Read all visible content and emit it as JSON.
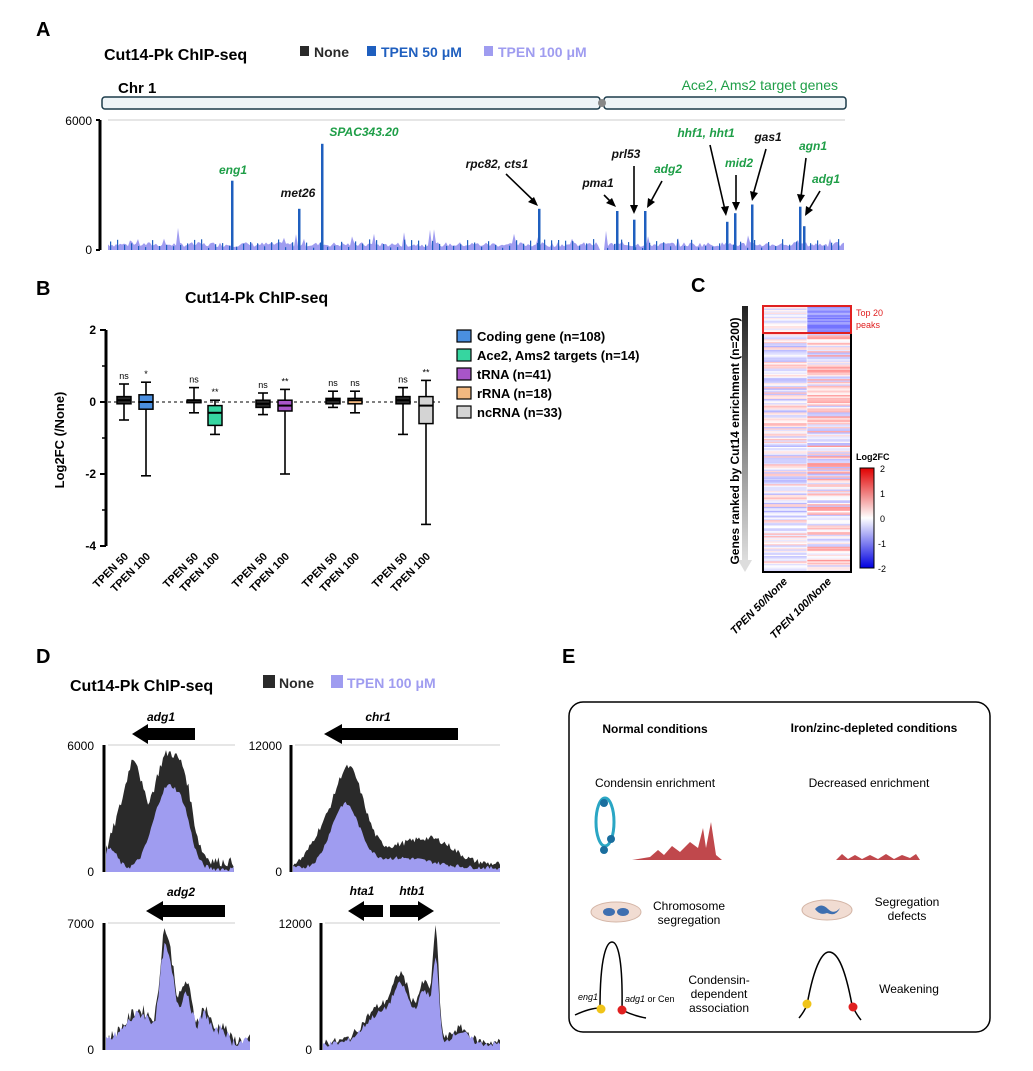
{
  "colors": {
    "none": "#2a2a2a",
    "tpen50": "#1f5fbf",
    "tpen100": "#9f9cf0",
    "green_label": "#1e9e47",
    "red": "#e02020",
    "condensin_red": "#c0484c",
    "coding": "#4a8fe0",
    "ace2": "#36d6a0",
    "trna": "#a855c9",
    "rrna": "#f2b880",
    "ncrna": "#d4d4d4"
  },
  "panel_letters": {
    "a": "A",
    "b": "B",
    "c": "C",
    "d": "D",
    "e": "E"
  },
  "panel_a": {
    "title": "Cut14-Pk ChIP-seq",
    "legend": [
      {
        "key": "none",
        "label": "None"
      },
      {
        "key": "tpen50",
        "label": "TPEN 50 μM"
      },
      {
        "key": "tpen100",
        "label": "TPEN 100 μM"
      }
    ],
    "chromosome_label": "Chr 1",
    "target_note": "Ace2, Ams2 target genes",
    "y_max": "6000",
    "y_min": "0",
    "peaks": [
      {
        "label": "eng1",
        "green": true,
        "value": 3200
      },
      {
        "label": "met26",
        "green": false,
        "value": 1900
      },
      {
        "label": "SPAC343.20",
        "green": true,
        "value": 4900
      },
      {
        "label": "rpc82, cts1",
        "green": false,
        "value": 1900
      },
      {
        "label": "pma1",
        "green": false,
        "value": 1800
      },
      {
        "label": "prl53",
        "green": false,
        "value": 1400
      },
      {
        "label": "adg2",
        "green": true,
        "value": 1800
      },
      {
        "label": "hhf1, hht1",
        "green": true,
        "value": 1300
      },
      {
        "label": "mid2",
        "green": true,
        "value": 1700
      },
      {
        "label": "gas1",
        "green": false,
        "value": 2100
      },
      {
        "label": "agn1",
        "green": true,
        "value": 2000
      },
      {
        "label": "adg1",
        "green": true,
        "value": 1100
      }
    ]
  },
  "panel_b": {
    "chart_data": {
      "type": "box",
      "title": "Cut14-Pk ChIP-seq",
      "ylabel": "Log2FC (/None)",
      "ylim": [
        -4,
        2
      ],
      "yticks": [
        "2",
        "0",
        "-2",
        "-4"
      ],
      "groups": [
        {
          "name": "Coding gene (n=108)",
          "color_key": "coding",
          "boxes": [
            {
              "x_label": "TPEN 50",
              "min": -0.5,
              "q1": -0.05,
              "median": 0.05,
              "q3": 0.15,
              "max": 0.5,
              "sig": "ns"
            },
            {
              "x_label": "TPEN 100",
              "min": -2.05,
              "q1": -0.2,
              "median": 0.0,
              "q3": 0.2,
              "max": 0.55,
              "sig": "*"
            }
          ]
        },
        {
          "name": "Ace2, Ams2 targets (n=14)",
          "color_key": "ace2",
          "boxes": [
            {
              "x_label": "TPEN 50",
              "min": -0.3,
              "q1": 0.0,
              "median": 0.05,
              "q3": 0.05,
              "max": 0.4,
              "sig": "ns"
            },
            {
              "x_label": "TPEN 100",
              "min": -0.9,
              "q1": -0.65,
              "median": -0.3,
              "q3": -0.1,
              "max": 0.05,
              "sig": "**"
            }
          ]
        },
        {
          "name": "tRNA (n=41)",
          "color_key": "trna",
          "boxes": [
            {
              "x_label": "TPEN 50",
              "min": -0.35,
              "q1": -0.15,
              "median": -0.05,
              "q3": 0.05,
              "max": 0.25,
              "sig": "ns"
            },
            {
              "x_label": "TPEN 100",
              "min": -2.0,
              "q1": -0.25,
              "median": -0.1,
              "q3": 0.05,
              "max": 0.35,
              "sig": "**"
            }
          ]
        },
        {
          "name": "rRNA (n=18)",
          "color_key": "rrna",
          "boxes": [
            {
              "x_label": "TPEN 50",
              "min": -0.15,
              "q1": -0.05,
              "median": 0.05,
              "q3": 0.1,
              "max": 0.3,
              "sig": "ns"
            },
            {
              "x_label": "TPEN 100",
              "min": -0.3,
              "q1": -0.05,
              "median": 0.05,
              "q3": 0.1,
              "max": 0.3,
              "sig": "ns"
            }
          ]
        },
        {
          "name": "ncRNA (n=33)",
          "color_key": "ncrna",
          "boxes": [
            {
              "x_label": "TPEN 50",
              "min": -0.9,
              "q1": -0.05,
              "median": 0.05,
              "q3": 0.15,
              "max": 0.4,
              "sig": "ns"
            },
            {
              "x_label": "TPEN 100",
              "min": -3.4,
              "q1": -0.6,
              "median": -0.1,
              "q3": 0.15,
              "max": 0.6,
              "sig": "**"
            }
          ]
        }
      ]
    }
  },
  "panel_c": {
    "y_label": "Genes ranked by Cut14 enrichment (n=200)",
    "top_label_line1": "Top 20",
    "top_label_line2": "peaks",
    "colorbar_title": "Log2FC",
    "colorbar_ticks": [
      "2",
      "1",
      "0",
      "-1",
      "-2"
    ],
    "x_labels": [
      "TPEN 50/None",
      "TPEN 100/None"
    ]
  },
  "panel_d": {
    "title": "Cut14-Pk ChIP-seq",
    "legend": [
      {
        "key": "none",
        "label": "None"
      },
      {
        "key": "tpen100",
        "label": "TPEN 100 μM"
      }
    ],
    "tracks": [
      {
        "genes": [
          "adg1"
        ],
        "y_max": "6000",
        "y_min": "0"
      },
      {
        "genes": [
          "chr1"
        ],
        "y_max": "12000",
        "y_min": "0"
      },
      {
        "genes": [
          "adg2"
        ],
        "y_max": "7000",
        "y_min": "0"
      },
      {
        "genes": [
          "hta1",
          "htb1"
        ],
        "y_max": "12000",
        "y_min": "0"
      }
    ]
  },
  "panel_e": {
    "col_normal": "Normal conditions",
    "col_depleted": "Iron/zinc-depleted conditions",
    "row1_normal": "Condensin enrichment",
    "row1_depleted": "Decreased enrichment",
    "row2_normal_l1": "Chromosome",
    "row2_normal_l2": "segregation",
    "row2_depleted_l1": "Segregation",
    "row2_depleted_l2": "defects",
    "row3_normal_l1": "Condensin-",
    "row3_normal_l2": "dependent",
    "row3_normal_l3": "association",
    "row3_depleted": "Weakening",
    "eng1_label": "eng1",
    "adg1_label": "adg1",
    "or_cen_label": " or Cen"
  }
}
